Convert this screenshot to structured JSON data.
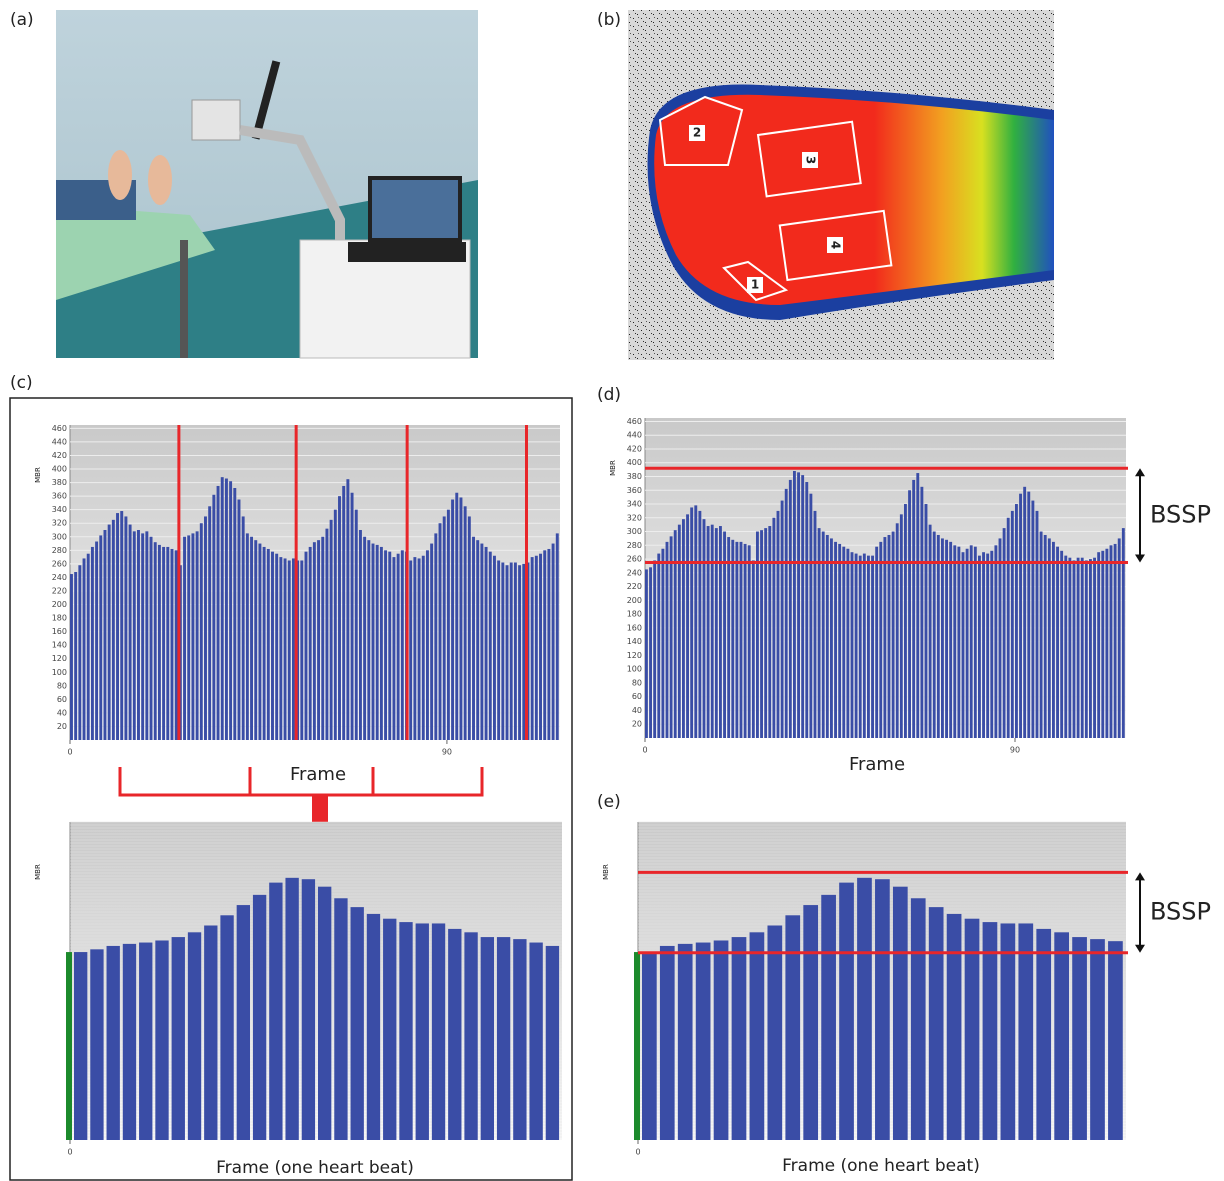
{
  "panels": {
    "a": {
      "label": "(a)"
    },
    "b": {
      "label": "(b)",
      "regions": [
        "1",
        "2",
        "3",
        "4"
      ]
    }
  },
  "chart_data": [
    {
      "type": "bar",
      "label": "(c)",
      "x_label": "Frame",
      "y_label": "MBR",
      "color": "#3a4da6",
      "xlim": [
        0,
        117
      ],
      "xticks": [
        0,
        90
      ],
      "ylim": [
        0,
        465
      ],
      "yticks": [
        20,
        40,
        60,
        80,
        100,
        120,
        140,
        160,
        180,
        200,
        220,
        240,
        260,
        280,
        300,
        320,
        340,
        360,
        380,
        400,
        420,
        440,
        460
      ],
      "values": [
        245,
        248,
        258,
        268,
        275,
        285,
        293,
        302,
        310,
        318,
        325,
        335,
        338,
        330,
        318,
        308,
        310,
        305,
        308,
        300,
        292,
        288,
        285,
        285,
        282,
        280,
        258,
        300,
        302,
        305,
        308,
        320,
        330,
        345,
        362,
        375,
        388,
        386,
        382,
        372,
        355,
        330,
        305,
        300,
        295,
        290,
        285,
        282,
        278,
        275,
        270,
        268,
        265,
        268,
        265,
        265,
        278,
        285,
        292,
        295,
        300,
        312,
        325,
        340,
        360,
        375,
        385,
        365,
        340,
        310,
        300,
        295,
        290,
        288,
        285,
        280,
        278,
        270,
        275,
        280,
        278,
        265,
        270,
        268,
        272,
        280,
        290,
        305,
        320,
        330,
        340,
        355,
        365,
        358,
        345,
        330,
        300,
        295,
        290,
        285,
        278,
        272,
        265,
        262,
        258,
        262,
        262,
        258,
        260,
        262,
        270,
        272,
        275,
        280,
        282,
        290,
        305
      ],
      "vlines": {
        "color": "#e8262a",
        "values": [
          26,
          54,
          80.5,
          109
        ]
      }
    },
    {
      "type": "bar",
      "x_label": "Frame (one heart beat)",
      "y_label": "MBR",
      "color": "#3a4da6",
      "xlim": [
        0,
        30
      ],
      "xticks": [
        0
      ],
      "ylim": [
        0,
        467
      ],
      "values": [
        276,
        280,
        285,
        288,
        290,
        293,
        298,
        305,
        315,
        330,
        345,
        360,
        378,
        385,
        383,
        372,
        355,
        342,
        332,
        325,
        320,
        318,
        318,
        310,
        305,
        298,
        298,
        295,
        290,
        285
      ]
    },
    {
      "type": "bar",
      "label": "(d)",
      "x_label": "Frame",
      "y_label": "MBR",
      "color": "#3a4da6",
      "xlim": [
        0,
        117
      ],
      "xticks": [
        0,
        90
      ],
      "ylim": [
        0,
        465
      ],
      "yticks": [
        20,
        40,
        60,
        80,
        100,
        120,
        140,
        160,
        180,
        200,
        220,
        240,
        260,
        280,
        300,
        320,
        340,
        360,
        380,
        400,
        420,
        440,
        460
      ],
      "values": [
        245,
        248,
        258,
        268,
        275,
        285,
        293,
        302,
        310,
        318,
        325,
        335,
        338,
        330,
        318,
        308,
        310,
        305,
        308,
        300,
        292,
        288,
        285,
        285,
        282,
        280,
        258,
        300,
        302,
        305,
        308,
        320,
        330,
        345,
        362,
        375,
        388,
        386,
        382,
        372,
        355,
        330,
        305,
        300,
        295,
        290,
        285,
        282,
        278,
        275,
        270,
        268,
        265,
        268,
        265,
        265,
        278,
        285,
        292,
        295,
        300,
        312,
        325,
        340,
        360,
        375,
        385,
        365,
        340,
        310,
        300,
        295,
        290,
        288,
        285,
        280,
        278,
        270,
        275,
        280,
        278,
        265,
        270,
        268,
        272,
        280,
        290,
        305,
        320,
        330,
        340,
        355,
        365,
        358,
        345,
        330,
        300,
        295,
        290,
        285,
        278,
        272,
        265,
        262,
        258,
        262,
        262,
        258,
        260,
        262,
        270,
        272,
        275,
        280,
        282,
        290,
        305
      ],
      "hlines": {
        "color": "#e8262a",
        "values": [
          392,
          255
        ]
      },
      "annotation": "BSSP"
    },
    {
      "type": "bar",
      "label": "(e)",
      "x_label": "Frame (one heart beat)",
      "y_label": "MBR",
      "color": "#3a4da6",
      "xlim": [
        0,
        27
      ],
      "xticks": [
        0
      ],
      "ylim": [
        0,
        467
      ],
      "values": [
        276,
        285,
        288,
        290,
        293,
        298,
        305,
        315,
        330,
        345,
        360,
        378,
        385,
        383,
        372,
        355,
        342,
        332,
        325,
        320,
        318,
        318,
        310,
        305,
        298,
        295,
        292
      ],
      "hlines": {
        "color": "#e8262a",
        "values": [
          393,
          275
        ]
      },
      "annotation": "BSSP"
    }
  ]
}
